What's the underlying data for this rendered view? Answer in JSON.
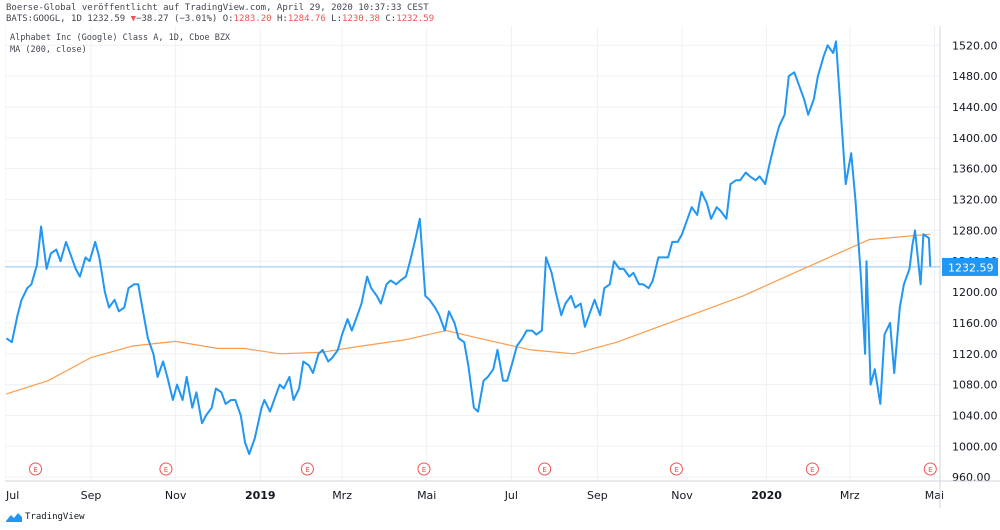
{
  "header": {
    "publisher_line": "Boerse-Global veröffentlicht auf TradingView.com, April 29, 2020 10:37:33 CEST",
    "symbol": "BATS:GOOGL, 1D",
    "last": "1232.59",
    "change_arrow": "▼",
    "change": "−38.27 (−3.01%)",
    "open_label": "O:",
    "open": "1283.20",
    "high_label": "H:",
    "high": "1284.76",
    "low_label": "L:",
    "low": "1230.38",
    "close_label": "C:",
    "close": "1232.59"
  },
  "legend": {
    "instrument": "Alphabet Inc (Google) Class A, 1D, Cboe BZX",
    "indicator": "MA (200, close)"
  },
  "footer": {
    "brand": "TradingView"
  },
  "colors": {
    "price_line": "#2196f3",
    "ma_line": "#ff9b4a",
    "last_price_tag": "#2196f3",
    "earnings_marker": "#ef5350",
    "grid": "#eef0f4",
    "axis_text": "#131722"
  },
  "chart_data": {
    "type": "line",
    "x_axis_labels": [
      "Jul",
      "Sep",
      "Nov",
      "2019",
      "Mrz",
      "Mai",
      "Jul",
      "Sep",
      "Nov",
      "2020",
      "Mrz",
      "Mai"
    ],
    "y_ticks": [
      "960.00",
      "1000.00",
      "1040.00",
      "1080.00",
      "1120.00",
      "1160.00",
      "1200.00",
      "1240.00",
      "1280.00",
      "1320.00",
      "1360.00",
      "1400.00",
      "1440.00",
      "1480.00",
      "1520.00"
    ],
    "ylim": [
      955,
      1545
    ],
    "last_price_label": "1232.59",
    "earnings_marker_label": "E",
    "earnings_markers": [
      "2018-07-23",
      "2018-10-25",
      "2019-02-04",
      "2019-04-29",
      "2019-07-25",
      "2019-10-28",
      "2020-02-03",
      "2020-04-28"
    ],
    "x_start": "2018-07-01",
    "x_end": "2020-05-05",
    "series": [
      {
        "key": "price",
        "points": [
          [
            "2018-07-02",
            1140
          ],
          [
            "2018-07-06",
            1135
          ],
          [
            "2018-07-10",
            1170
          ],
          [
            "2018-07-13",
            1190
          ],
          [
            "2018-07-17",
            1205
          ],
          [
            "2018-07-20",
            1210
          ],
          [
            "2018-07-24",
            1235
          ],
          [
            "2018-07-27",
            1285
          ],
          [
            "2018-07-31",
            1230
          ],
          [
            "2018-08-03",
            1250
          ],
          [
            "2018-08-07",
            1255
          ],
          [
            "2018-08-10",
            1240
          ],
          [
            "2018-08-14",
            1265
          ],
          [
            "2018-08-17",
            1250
          ],
          [
            "2018-08-21",
            1230
          ],
          [
            "2018-08-24",
            1220
          ],
          [
            "2018-08-28",
            1245
          ],
          [
            "2018-08-31",
            1240
          ],
          [
            "2018-09-04",
            1265
          ],
          [
            "2018-09-07",
            1245
          ],
          [
            "2018-09-11",
            1200
          ],
          [
            "2018-09-14",
            1180
          ],
          [
            "2018-09-18",
            1190
          ],
          [
            "2018-09-21",
            1175
          ],
          [
            "2018-09-25",
            1180
          ],
          [
            "2018-09-28",
            1205
          ],
          [
            "2018-10-02",
            1210
          ],
          [
            "2018-10-05",
            1210
          ],
          [
            "2018-10-09",
            1170
          ],
          [
            "2018-10-12",
            1140
          ],
          [
            "2018-10-16",
            1120
          ],
          [
            "2018-10-19",
            1090
          ],
          [
            "2018-10-23",
            1110
          ],
          [
            "2018-10-26",
            1090
          ],
          [
            "2018-10-30",
            1060
          ],
          [
            "2018-11-02",
            1080
          ],
          [
            "2018-11-06",
            1060
          ],
          [
            "2018-11-09",
            1090
          ],
          [
            "2018-11-13",
            1050
          ],
          [
            "2018-11-16",
            1070
          ],
          [
            "2018-11-20",
            1030
          ],
          [
            "2018-11-23",
            1040
          ],
          [
            "2018-11-27",
            1050
          ],
          [
            "2018-11-30",
            1075
          ],
          [
            "2018-12-04",
            1070
          ],
          [
            "2018-12-07",
            1055
          ],
          [
            "2018-12-11",
            1060
          ],
          [
            "2018-12-14",
            1060
          ],
          [
            "2018-12-18",
            1040
          ],
          [
            "2018-12-21",
            1005
          ],
          [
            "2018-12-24",
            990
          ],
          [
            "2018-12-28",
            1010
          ],
          [
            "2019-01-02",
            1050
          ],
          [
            "2019-01-04",
            1060
          ],
          [
            "2019-01-08",
            1045
          ],
          [
            "2019-01-11",
            1060
          ],
          [
            "2019-01-15",
            1080
          ],
          [
            "2019-01-18",
            1075
          ],
          [
            "2019-01-22",
            1090
          ],
          [
            "2019-01-25",
            1060
          ],
          [
            "2019-01-29",
            1075
          ],
          [
            "2019-02-01",
            1110
          ],
          [
            "2019-02-05",
            1105
          ],
          [
            "2019-02-08",
            1095
          ],
          [
            "2019-02-12",
            1120
          ],
          [
            "2019-02-15",
            1125
          ],
          [
            "2019-02-19",
            1110
          ],
          [
            "2019-02-22",
            1115
          ],
          [
            "2019-02-26",
            1125
          ],
          [
            "2019-03-01",
            1145
          ],
          [
            "2019-03-05",
            1165
          ],
          [
            "2019-03-08",
            1150
          ],
          [
            "2019-03-12",
            1170
          ],
          [
            "2019-03-15",
            1185
          ],
          [
            "2019-03-19",
            1220
          ],
          [
            "2019-03-22",
            1205
          ],
          [
            "2019-03-26",
            1195
          ],
          [
            "2019-03-29",
            1185
          ],
          [
            "2019-04-02",
            1210
          ],
          [
            "2019-04-05",
            1215
          ],
          [
            "2019-04-09",
            1210
          ],
          [
            "2019-04-12",
            1215
          ],
          [
            "2019-04-16",
            1220
          ],
          [
            "2019-04-19",
            1240
          ],
          [
            "2019-04-23",
            1270
          ],
          [
            "2019-04-26",
            1295
          ],
          [
            "2019-04-30",
            1195
          ],
          [
            "2019-05-03",
            1190
          ],
          [
            "2019-05-07",
            1180
          ],
          [
            "2019-05-10",
            1170
          ],
          [
            "2019-05-14",
            1150
          ],
          [
            "2019-05-17",
            1175
          ],
          [
            "2019-05-21",
            1160
          ],
          [
            "2019-05-24",
            1140
          ],
          [
            "2019-05-28",
            1135
          ],
          [
            "2019-05-31",
            1105
          ],
          [
            "2019-06-04",
            1050
          ],
          [
            "2019-06-07",
            1045
          ],
          [
            "2019-06-11",
            1085
          ],
          [
            "2019-06-14",
            1090
          ],
          [
            "2019-06-18",
            1100
          ],
          [
            "2019-06-21",
            1125
          ],
          [
            "2019-06-25",
            1085
          ],
          [
            "2019-06-28",
            1085
          ],
          [
            "2019-07-02",
            1110
          ],
          [
            "2019-07-05",
            1130
          ],
          [
            "2019-07-09",
            1140
          ],
          [
            "2019-07-12",
            1150
          ],
          [
            "2019-07-16",
            1150
          ],
          [
            "2019-07-19",
            1145
          ],
          [
            "2019-07-23",
            1150
          ],
          [
            "2019-07-26",
            1245
          ],
          [
            "2019-07-30",
            1225
          ],
          [
            "2019-08-02",
            1200
          ],
          [
            "2019-08-06",
            1170
          ],
          [
            "2019-08-09",
            1185
          ],
          [
            "2019-08-13",
            1195
          ],
          [
            "2019-08-16",
            1180
          ],
          [
            "2019-08-20",
            1185
          ],
          [
            "2019-08-23",
            1155
          ],
          [
            "2019-08-27",
            1175
          ],
          [
            "2019-08-30",
            1190
          ],
          [
            "2019-09-03",
            1170
          ],
          [
            "2019-09-06",
            1205
          ],
          [
            "2019-09-10",
            1210
          ],
          [
            "2019-09-13",
            1240
          ],
          [
            "2019-09-17",
            1230
          ],
          [
            "2019-09-20",
            1230
          ],
          [
            "2019-09-24",
            1220
          ],
          [
            "2019-09-27",
            1225
          ],
          [
            "2019-10-01",
            1210
          ],
          [
            "2019-10-04",
            1210
          ],
          [
            "2019-10-08",
            1205
          ],
          [
            "2019-10-11",
            1215
          ],
          [
            "2019-10-15",
            1245
          ],
          [
            "2019-10-18",
            1245
          ],
          [
            "2019-10-22",
            1245
          ],
          [
            "2019-10-25",
            1265
          ],
          [
            "2019-10-29",
            1265
          ],
          [
            "2019-11-01",
            1275
          ],
          [
            "2019-11-05",
            1295
          ],
          [
            "2019-11-08",
            1310
          ],
          [
            "2019-11-12",
            1300
          ],
          [
            "2019-11-15",
            1330
          ],
          [
            "2019-11-19",
            1315
          ],
          [
            "2019-11-22",
            1295
          ],
          [
            "2019-11-26",
            1310
          ],
          [
            "2019-11-29",
            1305
          ],
          [
            "2019-12-03",
            1295
          ],
          [
            "2019-12-06",
            1340
          ],
          [
            "2019-12-10",
            1345
          ],
          [
            "2019-12-13",
            1345
          ],
          [
            "2019-12-17",
            1355
          ],
          [
            "2019-12-20",
            1350
          ],
          [
            "2019-12-24",
            1345
          ],
          [
            "2019-12-27",
            1350
          ],
          [
            "2019-12-31",
            1340
          ],
          [
            "2020-01-03",
            1365
          ],
          [
            "2020-01-07",
            1395
          ],
          [
            "2020-01-10",
            1415
          ],
          [
            "2020-01-14",
            1430
          ],
          [
            "2020-01-17",
            1480
          ],
          [
            "2020-01-21",
            1485
          ],
          [
            "2020-01-24",
            1470
          ],
          [
            "2020-01-28",
            1450
          ],
          [
            "2020-01-31",
            1430
          ],
          [
            "2020-02-04",
            1450
          ],
          [
            "2020-02-07",
            1480
          ],
          [
            "2020-02-11",
            1505
          ],
          [
            "2020-02-14",
            1520
          ],
          [
            "2020-02-18",
            1510
          ],
          [
            "2020-02-20",
            1525
          ],
          [
            "2020-02-24",
            1420
          ],
          [
            "2020-02-27",
            1340
          ],
          [
            "2020-03-02",
            1380
          ],
          [
            "2020-03-05",
            1320
          ],
          [
            "2020-03-09",
            1220
          ],
          [
            "2020-03-12",
            1120
          ],
          [
            "2020-03-13",
            1240
          ],
          [
            "2020-03-16",
            1080
          ],
          [
            "2020-03-19",
            1100
          ],
          [
            "2020-03-23",
            1055
          ],
          [
            "2020-03-26",
            1145
          ],
          [
            "2020-03-30",
            1160
          ],
          [
            "2020-04-02",
            1095
          ],
          [
            "2020-04-06",
            1180
          ],
          [
            "2020-04-09",
            1210
          ],
          [
            "2020-04-13",
            1230
          ],
          [
            "2020-04-15",
            1260
          ],
          [
            "2020-04-17",
            1280
          ],
          [
            "2020-04-21",
            1210
          ],
          [
            "2020-04-23",
            1275
          ],
          [
            "2020-04-27",
            1270
          ],
          [
            "2020-04-28",
            1233
          ]
        ]
      },
      {
        "key": "ma200",
        "points": [
          [
            "2018-07-02",
            1068
          ],
          [
            "2018-08-01",
            1085
          ],
          [
            "2018-09-01",
            1115
          ],
          [
            "2018-10-01",
            1130
          ],
          [
            "2018-11-01",
            1136
          ],
          [
            "2018-12-01",
            1127
          ],
          [
            "2018-12-20",
            1127
          ],
          [
            "2019-01-15",
            1120
          ],
          [
            "2019-02-15",
            1122
          ],
          [
            "2019-03-15",
            1130
          ],
          [
            "2019-04-15",
            1138
          ],
          [
            "2019-05-15",
            1150
          ],
          [
            "2019-06-15",
            1137
          ],
          [
            "2019-07-15",
            1125
          ],
          [
            "2019-08-15",
            1120
          ],
          [
            "2019-09-15",
            1135
          ],
          [
            "2019-10-15",
            1155
          ],
          [
            "2019-11-15",
            1175
          ],
          [
            "2019-12-15",
            1195
          ],
          [
            "2020-01-15",
            1220
          ],
          [
            "2020-02-15",
            1245
          ],
          [
            "2020-03-15",
            1268
          ],
          [
            "2020-04-28",
            1275
          ]
        ]
      }
    ]
  }
}
